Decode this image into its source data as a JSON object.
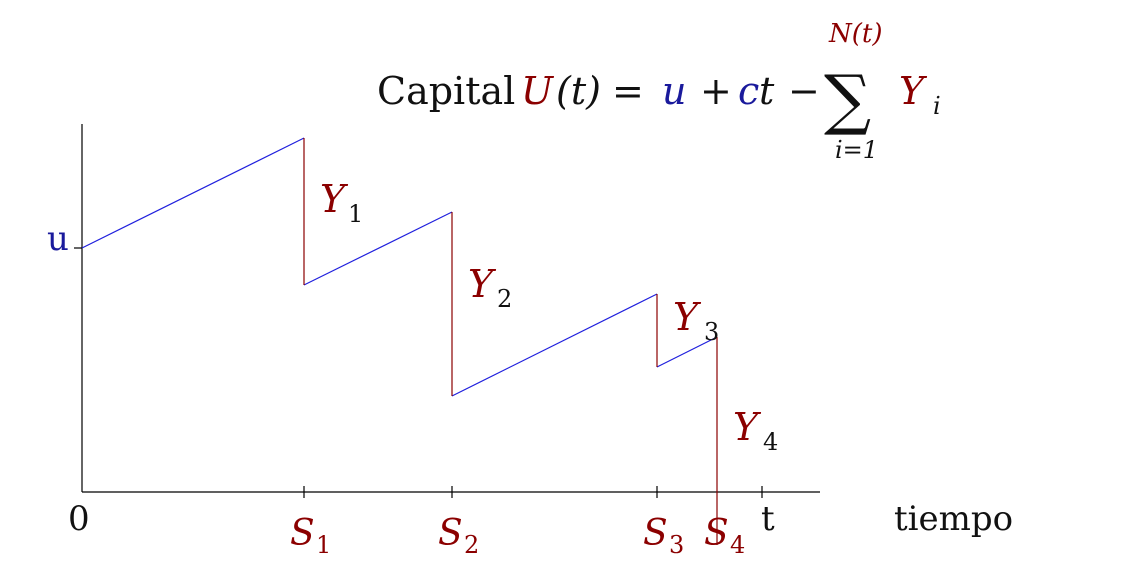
{
  "formula": {
    "prefix": "Capital",
    "U": "U",
    "t_arg": "(t)",
    "equals": "=",
    "u": "u",
    "plus": "+",
    "c": "c",
    "t": "t",
    "minus": "−",
    "sigma": "∑",
    "upper": "N(t)",
    "lower": "i=1",
    "Y": "Y",
    "sub_i": "i"
  },
  "axis": {
    "y_label": "u",
    "origin": "0",
    "t_label": "t",
    "x_title": "tiempo"
  },
  "claims": [
    {
      "Y": "Y",
      "sub": "1"
    },
    {
      "Y": "Y",
      "sub": "2"
    },
    {
      "Y": "Y",
      "sub": "3"
    },
    {
      "Y": "Y",
      "sub": "4"
    }
  ],
  "times": [
    {
      "S": "S",
      "sub": "1"
    },
    {
      "S": "S",
      "sub": "2"
    },
    {
      "S": "S",
      "sub": "3"
    },
    {
      "S": "S",
      "sub": "4"
    }
  ],
  "colors": {
    "capital": "#8b0000",
    "u": "#1a1a9c",
    "path": "#2020dd",
    "jump": "#8b0000",
    "axis": "#000000"
  }
}
